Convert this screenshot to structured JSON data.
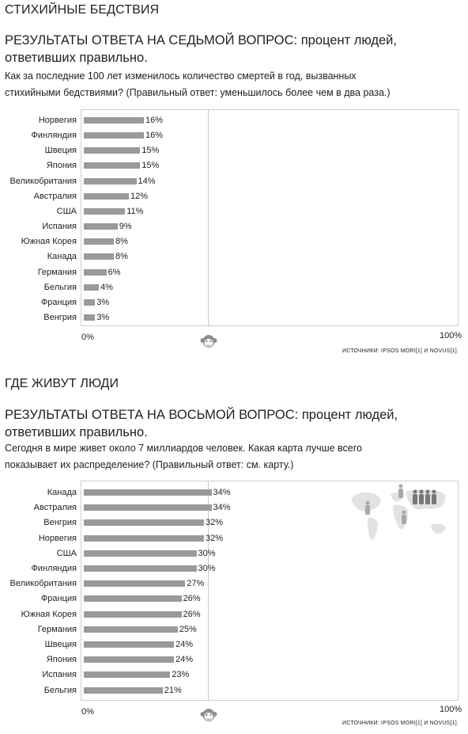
{
  "sections": [
    {
      "title": "СТИХИЙНЫЕ БЕДСТВИЯ",
      "heading_line1": "РЕЗУЛЬТАТЫ ОТВЕТА НА СЕДЬМОЙ ВОПРОС: процент людей,",
      "heading_line2": "ответивших правильно.",
      "question_line1": "Как за последние 100 лет изменилось количество смертей в год, вызванных",
      "question_line2": "стихийными бедствиями? (Правильный ответ: уменьшилось более чем в два раза.)",
      "axis_min_label": "0%",
      "axis_max_label": "100%",
      "source": "ИСТОЧНИКИ: IPSOS MORI[1] И NOVUS[1]."
    },
    {
      "title": "ГДЕ ЖИВУТ ЛЮДИ",
      "heading_line1": "РЕЗУЛЬТАТЫ ОТВЕТА НА ВОСЬМОЙ ВОПРОС: процент людей,",
      "heading_line2": "ответивших правильно.",
      "question_line1": "Сегодня в мире живет около 7 миллиардов человек. Какая карта лучше всего",
      "question_line2": "показывает их распределение? (Правильный ответ: см. карту.)",
      "axis_min_label": "0%",
      "axis_max_label": "100%",
      "source": "ИСТОЧНИКИ: IPSOS MORI[1] И NOVUS[1]."
    }
  ],
  "colors": {
    "bar": "#9a9a9a",
    "border": "#cfcfcf",
    "midline": "#c9c9c9",
    "text": "#222222"
  },
  "icons": [
    "monkey-icon",
    "world-map-icon"
  ],
  "chart_data": [
    {
      "type": "bar",
      "orientation": "horizontal",
      "xlim": [
        0,
        100
      ],
      "grid": false,
      "reference_line_value": 33,
      "categories": [
        "Норвегия",
        "Финляндия",
        "Швеция",
        "Япония",
        "Великобритания",
        "Австралия",
        "США",
        "Испания",
        "Южная Корея",
        "Канада",
        "Германия",
        "Бельгия",
        "Франция",
        "Венгрия"
      ],
      "values": [
        16,
        16,
        15,
        15,
        14,
        12,
        11,
        9,
        8,
        8,
        6,
        4,
        3,
        3
      ],
      "value_labels": [
        "16%",
        "16%",
        "15%",
        "15%",
        "14%",
        "12%",
        "11%",
        "9%",
        "8%",
        "8%",
        "6%",
        "4%",
        "3%",
        "3%"
      ]
    },
    {
      "type": "bar",
      "orientation": "horizontal",
      "xlim": [
        0,
        100
      ],
      "grid": false,
      "reference_line_value": 33,
      "categories": [
        "Канада",
        "Австралия",
        "Венгрия",
        "Норвегия",
        "США",
        "Финляндия",
        "Великобритания",
        "Франция",
        "Южная Корея",
        "Германия",
        "Швеция",
        "Япония",
        "Испания",
        "Бельгия"
      ],
      "values": [
        34,
        34,
        32,
        32,
        30,
        30,
        27,
        26,
        26,
        25,
        24,
        24,
        23,
        21
      ],
      "value_labels": [
        "34%",
        "34%",
        "32%",
        "32%",
        "30%",
        "30%",
        "27%",
        "26%",
        "26%",
        "25%",
        "24%",
        "24%",
        "23%",
        "21%"
      ]
    }
  ]
}
